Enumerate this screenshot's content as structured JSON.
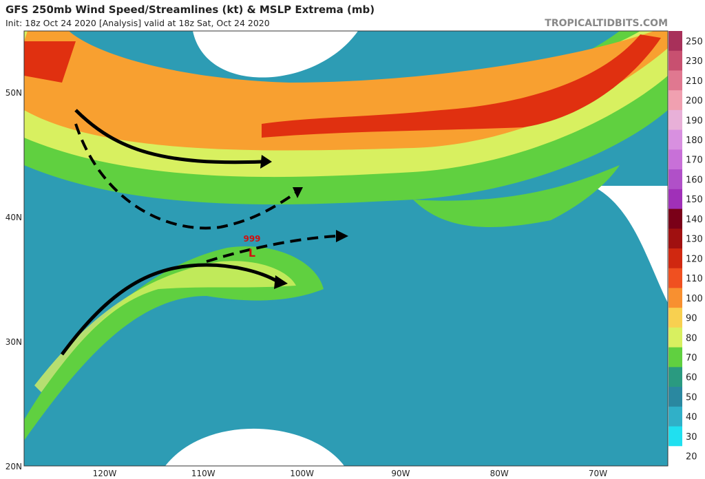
{
  "header": {
    "title": "GFS 250mb Wind Speed/Streamlines (kt) & MSLP Extrema (mb)",
    "subtitle": "Init: 18z Oct 24 2020  [Analysis]   valid at 18z Sat, Oct 24 2020",
    "site": "TROPICALTIDBITS.COM"
  },
  "map": {
    "lat_labels": [
      "50N",
      "40N",
      "30N",
      "20N"
    ],
    "lon_labels": [
      "120W",
      "110W",
      "100W",
      "90W",
      "80W",
      "70W"
    ],
    "pressure_label": "999",
    "low_marker": "L"
  },
  "colorbar": {
    "levels": [
      250,
      230,
      210,
      200,
      190,
      180,
      170,
      160,
      150,
      140,
      130,
      120,
      110,
      100,
      90,
      80,
      70,
      60,
      50,
      40,
      30,
      20
    ],
    "colors": [
      "#a8305a",
      "#c85070",
      "#e07890",
      "#f0a0b0",
      "#e8b0d8",
      "#d890e0",
      "#c870d8",
      "#b050c8",
      "#a030b8",
      "#7a0018",
      "#a01010",
      "#d02810",
      "#f05020",
      "#f89030",
      "#f8d050",
      "#d8f060",
      "#60d040",
      "#2a9a80",
      "#2a88a0",
      "#30b0c8",
      "#20e0f0",
      "#ffffff"
    ]
  }
}
